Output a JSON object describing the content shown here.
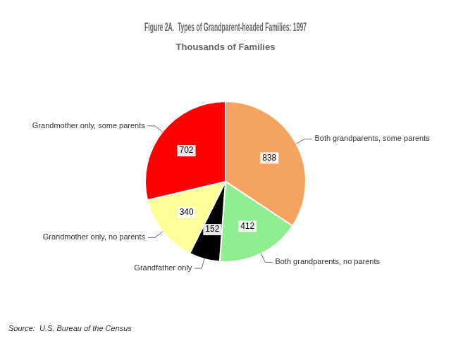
{
  "chart_data": {
    "type": "pie",
    "title": "Figure 2A.  Types of Grandparent-headed Families: 1997",
    "subtitle": "Thousands of Families",
    "annotations": [
      "Source:  U.S. Bureau of the Census"
    ],
    "categories": [
      "Both grandparents, some parents",
      "Both grandparents, no parents",
      "Grandfather only",
      "Grandmother only, no parents",
      "Grandmother only, some parents"
    ],
    "values": [
      838,
      412,
      152,
      340,
      702
    ],
    "colors": [
      "#f4a460",
      "#90ee90",
      "#000000",
      "#ffff99",
      "#ff0000"
    ],
    "data_labels": true
  }
}
